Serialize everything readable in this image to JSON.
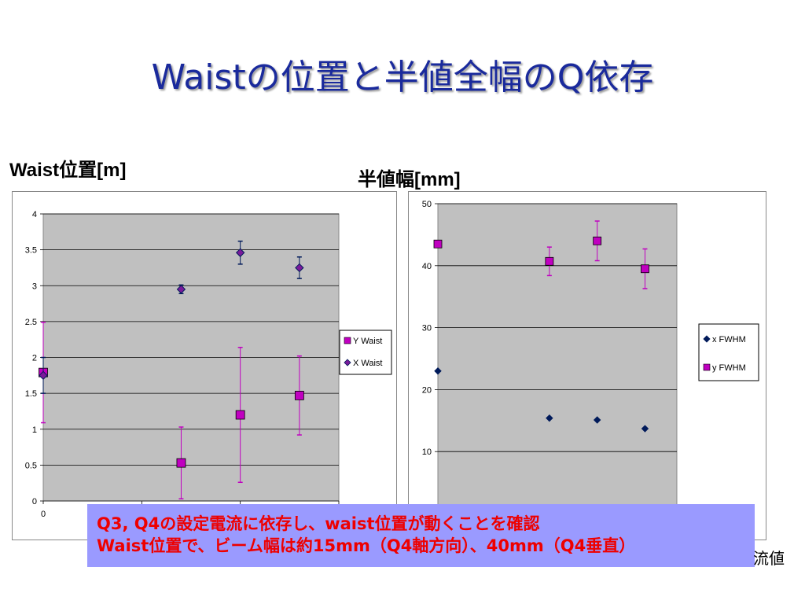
{
  "slide": {
    "title": "Waistの位置と半値全幅のQ依存",
    "left_label": "Waist位置[m]",
    "right_label": "半値幅[mm]",
    "note_lines": [
      "Q3, Q4の設定電流に依存し、waist位置が動くことを確認",
      "Waist位置で、ビーム幅は約15mm（Q4軸方向）、40mm（Q4垂直）"
    ],
    "peek_text": "流値"
  },
  "colors": {
    "magenta": "#c000c0",
    "navy": "#001a5a",
    "plot_bg": "#c0c0c0",
    "title": "#1a2a9c",
    "note_bg": "#9a9aff",
    "note_text": "#ee0000"
  },
  "chart_data": [
    {
      "type": "scatter",
      "title": "Waist位置[m]",
      "ylim": [
        0,
        4
      ],
      "yticks": [
        "0",
        "0.5",
        "1",
        "1.5",
        "2",
        "2.5",
        "3",
        "3.5",
        "4"
      ],
      "xticks_visible": [
        "0"
      ],
      "xlim": [
        0,
        3
      ],
      "grid": true,
      "legend_position": "right",
      "series": [
        {
          "name": "Y Waist",
          "marker": "square",
          "color": "#c000c0",
          "points": [
            {
              "x": 0,
              "y": 1.79,
              "err_lo": 0.7,
              "err_hi": 0.7
            },
            {
              "x": 1.4,
              "y": 0.53,
              "err_lo": 0.5,
              "err_hi": 0.5
            },
            {
              "x": 2.0,
              "y": 1.2,
              "err_lo": 0.94,
              "err_hi": 0.94
            },
            {
              "x": 2.6,
              "y": 1.47,
              "err_lo": 0.55,
              "err_hi": 0.55
            }
          ]
        },
        {
          "name": "X Waist",
          "marker": "diamond",
          "color": "#001a5a",
          "points": [
            {
              "x": 0,
              "y": 1.75,
              "err_lo": 0.25,
              "err_hi": 0.25
            },
            {
              "x": 1.4,
              "y": 2.95,
              "err_lo": 0.06,
              "err_hi": 0.06
            },
            {
              "x": 2.0,
              "y": 3.46,
              "err_lo": 0.16,
              "err_hi": 0.16
            },
            {
              "x": 2.6,
              "y": 3.25,
              "err_lo": 0.15,
              "err_hi": 0.15
            }
          ]
        }
      ]
    },
    {
      "type": "scatter",
      "title": "半値幅[mm]",
      "ylim": [
        0,
        50
      ],
      "yticks": [
        "10",
        "20",
        "30",
        "40",
        "50"
      ],
      "xlim": [
        0,
        3
      ],
      "grid": true,
      "legend_position": "right",
      "series": [
        {
          "name": "x FWHM",
          "marker": "diamond",
          "color": "#001a5a",
          "points": [
            {
              "x": 0,
              "y": 23.0
            },
            {
              "x": 1.4,
              "y": 15.4
            },
            {
              "x": 2.0,
              "y": 15.1
            },
            {
              "x": 2.6,
              "y": 13.7
            }
          ]
        },
        {
          "name": "y FWHM",
          "marker": "square",
          "color": "#c000c0",
          "points": [
            {
              "x": 0,
              "y": 43.5
            },
            {
              "x": 1.4,
              "y": 40.7,
              "err_lo": 2.3,
              "err_hi": 2.3
            },
            {
              "x": 2.0,
              "y": 44.0,
              "err_lo": 3.2,
              "err_hi": 3.2
            },
            {
              "x": 2.6,
              "y": 39.5,
              "err_lo": 3.2,
              "err_hi": 3.2
            }
          ]
        }
      ]
    }
  ]
}
